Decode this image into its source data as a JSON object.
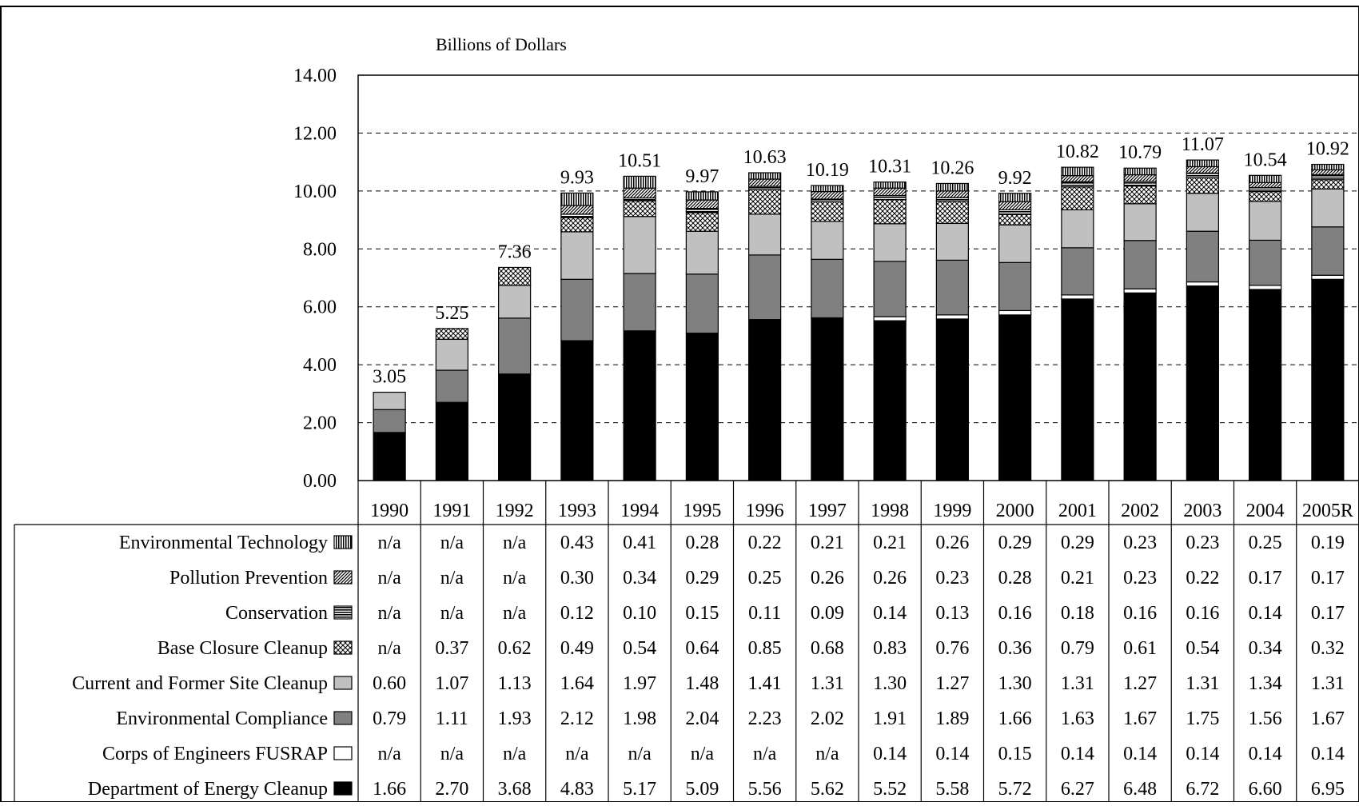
{
  "chart_data": {
    "type": "bar",
    "stacked": true,
    "title": "",
    "ylabel": "Billions of Dollars",
    "xlabel": "",
    "ylim": [
      0,
      14
    ],
    "yticks": [
      "0.00",
      "2.00",
      "4.00",
      "6.00",
      "8.00",
      "10.00",
      "12.00",
      "14.00"
    ],
    "grid": "horizontal dashed",
    "categories": [
      "1990",
      "1991",
      "1992",
      "1993",
      "1994",
      "1995",
      "1996",
      "1997",
      "1998",
      "1999",
      "2000",
      "2001",
      "2002",
      "2003",
      "2004",
      "2005R"
    ],
    "totals": [
      "3.05",
      "5.25",
      "7.36",
      "9.93",
      "10.51",
      "9.97",
      "10.63",
      "10.19",
      "10.31",
      "10.26",
      "9.92",
      "10.82",
      "10.79",
      "11.07",
      "10.54",
      "10.92"
    ],
    "series": [
      {
        "name": "Department of Energy Cleanup",
        "pattern": "solid-black",
        "labels": [
          "1.66",
          "2.70",
          "3.68",
          "4.83",
          "5.17",
          "5.09",
          "5.56",
          "5.62",
          "5.52",
          "5.58",
          "5.72",
          "6.27",
          "6.48",
          "6.72",
          "6.60",
          "6.95"
        ],
        "values": [
          1.66,
          2.7,
          3.68,
          4.83,
          5.17,
          5.09,
          5.56,
          5.62,
          5.52,
          5.58,
          5.72,
          6.27,
          6.48,
          6.72,
          6.6,
          6.95
        ]
      },
      {
        "name": "Corps of Engineers FUSRAP",
        "pattern": "white",
        "labels": [
          "n/a",
          "n/a",
          "n/a",
          "n/a",
          "n/a",
          "n/a",
          "n/a",
          "n/a",
          "0.14",
          "0.14",
          "0.15",
          "0.14",
          "0.14",
          "0.14",
          "0.14",
          "0.14"
        ],
        "values": [
          0,
          0,
          0,
          0,
          0,
          0,
          0,
          0,
          0.14,
          0.14,
          0.15,
          0.14,
          0.14,
          0.14,
          0.14,
          0.14
        ]
      },
      {
        "name": "Environmental Compliance",
        "pattern": "dark-gray",
        "labels": [
          "0.79",
          "1.11",
          "1.93",
          "2.12",
          "1.98",
          "2.04",
          "2.23",
          "2.02",
          "1.91",
          "1.89",
          "1.66",
          "1.63",
          "1.67",
          "1.75",
          "1.56",
          "1.67"
        ],
        "values": [
          0.79,
          1.11,
          1.93,
          2.12,
          1.98,
          2.04,
          2.23,
          2.02,
          1.91,
          1.89,
          1.66,
          1.63,
          1.67,
          1.75,
          1.56,
          1.67
        ]
      },
      {
        "name": "Current and Former Site Cleanup",
        "pattern": "light-gray",
        "labels": [
          "0.60",
          "1.07",
          "1.13",
          "1.64",
          "1.97",
          "1.48",
          "1.41",
          "1.31",
          "1.30",
          "1.27",
          "1.30",
          "1.31",
          "1.27",
          "1.31",
          "1.34",
          "1.31"
        ],
        "values": [
          0.6,
          1.07,
          1.13,
          1.64,
          1.97,
          1.48,
          1.41,
          1.31,
          1.3,
          1.27,
          1.3,
          1.31,
          1.27,
          1.31,
          1.34,
          1.31
        ]
      },
      {
        "name": "Base Closure Cleanup",
        "pattern": "crosshatch",
        "labels": [
          "n/a",
          "0.37",
          "0.62",
          "0.49",
          "0.54",
          "0.64",
          "0.85",
          "0.68",
          "0.83",
          "0.76",
          "0.36",
          "0.79",
          "0.61",
          "0.54",
          "0.34",
          "0.32"
        ],
        "values": [
          0,
          0.37,
          0.62,
          0.49,
          0.54,
          0.64,
          0.85,
          0.68,
          0.83,
          0.76,
          0.36,
          0.79,
          0.61,
          0.54,
          0.34,
          0.32
        ]
      },
      {
        "name": "Conservation",
        "pattern": "horizontal-lines",
        "labels": [
          "n/a",
          "n/a",
          "n/a",
          "0.12",
          "0.10",
          "0.15",
          "0.11",
          "0.09",
          "0.14",
          "0.13",
          "0.16",
          "0.18",
          "0.16",
          "0.16",
          "0.14",
          "0.17"
        ],
        "values": [
          0,
          0,
          0,
          0.12,
          0.1,
          0.15,
          0.11,
          0.09,
          0.14,
          0.13,
          0.16,
          0.18,
          0.16,
          0.16,
          0.14,
          0.17
        ]
      },
      {
        "name": "Pollution Prevention",
        "pattern": "diagonal-lines",
        "labels": [
          "n/a",
          "n/a",
          "n/a",
          "0.30",
          "0.34",
          "0.29",
          "0.25",
          "0.26",
          "0.26",
          "0.23",
          "0.28",
          "0.21",
          "0.23",
          "0.22",
          "0.17",
          "0.17"
        ],
        "values": [
          0,
          0,
          0,
          0.3,
          0.34,
          0.29,
          0.25,
          0.26,
          0.26,
          0.23,
          0.28,
          0.21,
          0.23,
          0.22,
          0.17,
          0.17
        ]
      },
      {
        "name": "Environmental Technology",
        "pattern": "vertical-lines",
        "labels": [
          "n/a",
          "n/a",
          "n/a",
          "0.43",
          "0.41",
          "0.28",
          "0.22",
          "0.21",
          "0.21",
          "0.26",
          "0.29",
          "0.29",
          "0.23",
          "0.23",
          "0.25",
          "0.19"
        ],
        "values": [
          0,
          0,
          0,
          0.43,
          0.41,
          0.28,
          0.22,
          0.21,
          0.21,
          0.26,
          0.29,
          0.29,
          0.23,
          0.23,
          0.25,
          0.19
        ]
      }
    ]
  }
}
